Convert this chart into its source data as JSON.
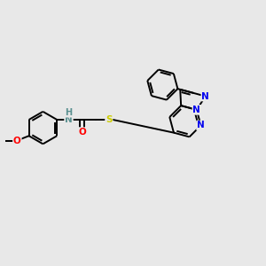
{
  "bg_color": "#e8e8e8",
  "bond_color": "#000000",
  "atom_colors": {
    "N": "#0000ee",
    "O": "#ff0000",
    "S": "#cccc00",
    "NH": "#5a9090",
    "H": "#5a9090"
  },
  "lw": 1.4,
  "fontsize": 7.5
}
